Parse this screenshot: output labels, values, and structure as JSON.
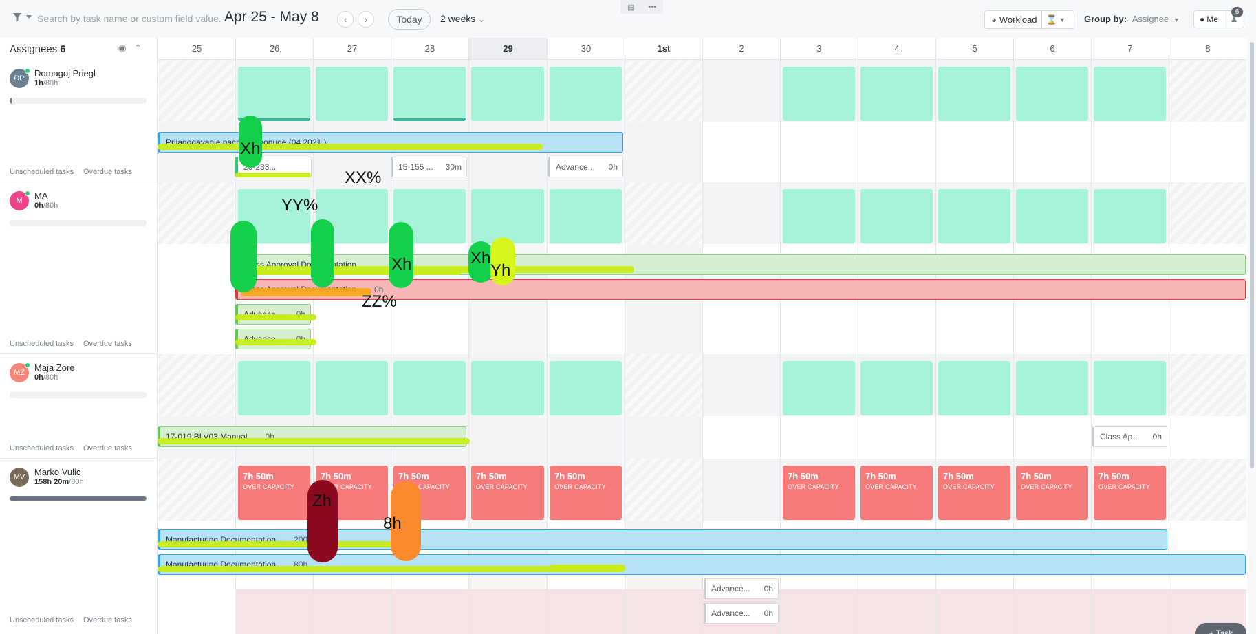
{
  "toolbar": {
    "search_placeholder": "Search by task name or custom field value...",
    "date_range": "Apr 25 - May 8",
    "today_label": "Today",
    "range_label": "2 weeks",
    "workload_label": "Workload",
    "group_by_label": "Group by:",
    "group_by_value": "Assignee",
    "me_label": "Me",
    "badge": "6",
    "save_icon": "▤",
    "more_icon": "•••"
  },
  "left": {
    "assignees_label": "Assignees",
    "assignees_count": "6"
  },
  "days": [
    "25",
    "26",
    "27",
    "28",
    "29",
    "30",
    "1st",
    "2",
    "3",
    "4",
    "5",
    "6",
    "7",
    "8"
  ],
  "people": [
    {
      "initials": "DP",
      "name": "Domagoj Priegl",
      "hours_used": "1h",
      "hours_total": "/80h",
      "avatar_color": "#6b7f8e",
      "load": 0.0125,
      "unscheduled": "Unscheduled tasks",
      "overdue": "Overdue tasks"
    },
    {
      "initials": "M",
      "name": "MA",
      "hours_used": "0h",
      "hours_total": "/80h",
      "avatar_color": "#f0438a",
      "load": 0,
      "unscheduled": "Unscheduled tasks",
      "overdue": "Overdue tasks"
    },
    {
      "initials": "MZ",
      "name": "Maja Zore",
      "hours_used": "0h",
      "hours_total": "/80h",
      "avatar_color": "#f5867a",
      "load": 0,
      "unscheduled": "Unscheduled tasks",
      "overdue": "Overdue tasks"
    },
    {
      "initials": "MV",
      "name": "Marko Vulic",
      "hours_used": "158h 20m",
      "hours_total": "/80h",
      "avatar_color": "#7a6a58",
      "load": 1,
      "unscheduled": "Unscheduled tasks",
      "overdue": "Overdue tasks"
    }
  ],
  "tasks": {
    "t1": {
      "name": "Prilagođavanje nacrta za ponude (04.2021.)",
      "hours": ""
    },
    "t2": {
      "name": "20-233...",
      "hours": ""
    },
    "t3": {
      "name": "15-155 ...",
      "hours": "30m"
    },
    "t4": {
      "name": "Advance...",
      "hours": "0h"
    },
    "t5": {
      "name": "Class Approval Documentation",
      "hours": ""
    },
    "t6": {
      "name": "Class Approval Documentation",
      "hours": "0h"
    },
    "t7": {
      "name": "Advance...",
      "hours": "0h"
    },
    "t8": {
      "name": "Advance...",
      "hours": "0h"
    },
    "t9": {
      "name": "17-019 BLV03 Manual",
      "hours": "0h"
    },
    "t10": {
      "name": "Class Ap...",
      "hours": "0h"
    },
    "t11": {
      "name": "Manufacturing Documentation",
      "hours": "200h"
    },
    "t12": {
      "name": "Manufacturing Documentation",
      "hours": "80h"
    },
    "t13": {
      "name": "Advance...",
      "hours": "0h"
    },
    "t14": {
      "name": "Advance...",
      "hours": "0h"
    }
  },
  "over_capacity": {
    "time": "7h 50m",
    "label": "OVER CAPACITY"
  },
  "marks": {
    "m1": "Xh",
    "m2": "XX%",
    "m3": "YY%",
    "m4": "Xh",
    "m5": "Xh",
    "m6": "Yh",
    "m7": "ZZ%",
    "m8": "Zh",
    "m9": "8h"
  },
  "fab_label": "+ Task"
}
